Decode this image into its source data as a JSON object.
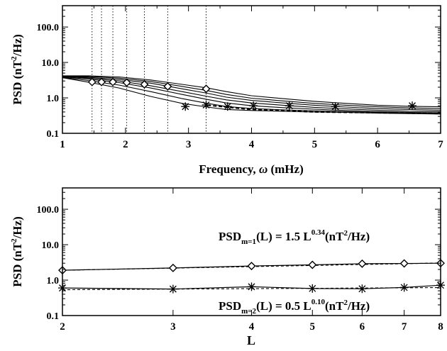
{
  "chart_data": [
    {
      "type": "line",
      "title": "",
      "xlabel_text": "Frequency,",
      "xlabel_symbol": "ω",
      "xlabel_unit": "(mHz)",
      "ylabel_main": "PSD (nT",
      "ylabel_sup": "2",
      "ylabel_tail": "/Hz)",
      "xscale": "linear",
      "yscale": "log",
      "xlim": [
        1,
        7
      ],
      "ylim": [
        0.1,
        400
      ],
      "grid": false,
      "xticks": [
        "1",
        "2",
        "3",
        "4",
        "5",
        "6",
        "7"
      ],
      "yticks": [
        "0.1",
        "1.0",
        "10.0",
        "100.0"
      ],
      "vertical_dotted_lines": [
        1.47,
        1.62,
        1.8,
        2.02,
        2.3,
        2.67,
        3.28
      ],
      "series": [
        {
          "x": [
            1,
            1.4,
            1.9,
            2.4,
            2.9,
            3.3,
            3.6,
            4,
            4.5,
            5,
            5.5,
            6,
            6.5,
            7
          ],
          "values": [
            4.2,
            4.2,
            3.9,
            3.2,
            2.4,
            1.9,
            1.5,
            1.15,
            0.95,
            0.8,
            0.7,
            0.62,
            0.58,
            0.56
          ]
        },
        {
          "x": [
            1,
            1.4,
            1.9,
            2.4,
            2.9,
            3.3,
            3.6,
            4,
            4.5,
            5,
            5.5,
            6,
            6.5,
            7
          ],
          "values": [
            4.1,
            4.0,
            3.6,
            2.9,
            2.1,
            1.6,
            1.25,
            0.98,
            0.82,
            0.7,
            0.62,
            0.56,
            0.52,
            0.5
          ]
        },
        {
          "x": [
            1,
            1.4,
            1.9,
            2.4,
            2.9,
            3.3,
            3.6,
            4,
            4.5,
            5,
            5.5,
            6,
            6.5,
            7
          ],
          "values": [
            4.0,
            3.8,
            3.3,
            2.6,
            1.8,
            1.35,
            1.05,
            0.85,
            0.72,
            0.62,
            0.55,
            0.5,
            0.47,
            0.45
          ]
        },
        {
          "x": [
            1,
            1.4,
            1.9,
            2.4,
            2.9,
            3.3,
            3.6,
            4,
            4.5,
            5,
            5.5,
            6,
            6.5,
            7
          ],
          "values": [
            4.0,
            3.6,
            3.0,
            2.2,
            1.5,
            1.1,
            0.88,
            0.72,
            0.62,
            0.54,
            0.49,
            0.45,
            0.42,
            0.41
          ]
        },
        {
          "x": [
            1,
            1.4,
            1.9,
            2.4,
            2.9,
            3.3,
            3.6,
            4,
            4.5,
            5,
            5.5,
            6,
            6.5,
            7
          ],
          "values": [
            3.9,
            3.4,
            2.7,
            1.9,
            1.25,
            0.9,
            0.72,
            0.6,
            0.53,
            0.48,
            0.44,
            0.41,
            0.39,
            0.38
          ]
        },
        {
          "x": [
            1,
            1.4,
            1.9,
            2.4,
            2.9,
            3.3,
            3.6,
            4,
            4.5,
            5,
            5.5,
            6,
            6.5,
            7
          ],
          "values": [
            3.8,
            3.1,
            2.3,
            1.5,
            0.95,
            0.7,
            0.57,
            0.5,
            0.46,
            0.43,
            0.41,
            0.39,
            0.37,
            0.36
          ]
        },
        {
          "x": [
            1,
            1.4,
            1.9,
            2.4,
            2.9,
            3.3,
            3.6,
            4,
            4.5,
            5,
            5.5,
            6,
            6.5,
            7
          ],
          "values": [
            3.7,
            2.8,
            1.9,
            1.1,
            0.7,
            0.55,
            0.47,
            0.44,
            0.42,
            0.4,
            0.39,
            0.37,
            0.36,
            0.35
          ]
        }
      ],
      "markers": {
        "diamond": {
          "x": [
            1.47,
            1.62,
            1.8,
            2.02,
            2.3,
            2.67,
            3.28
          ],
          "values": [
            2.8,
            2.8,
            2.8,
            2.7,
            2.4,
            2.1,
            1.8
          ]
        },
        "asterisk": {
          "x": [
            2.95,
            3.28,
            3.62,
            4.03,
            4.6,
            5.33,
            6.55
          ],
          "values": [
            0.57,
            0.63,
            0.57,
            0.6,
            0.6,
            0.57,
            0.6
          ]
        }
      },
      "dashed_series": {
        "x": [
          3.3,
          4,
          5,
          6,
          7
        ],
        "values": [
          0.62,
          0.47,
          0.4,
          0.38,
          0.36
        ]
      }
    },
    {
      "type": "line",
      "title": "",
      "xlabel": "L",
      "ylabel_main": "PSD (nT",
      "ylabel_sup": "2",
      "ylabel_tail": "/Hz)",
      "xscale": "log",
      "yscale": "log",
      "xlim": [
        2,
        8
      ],
      "ylim": [
        0.1,
        400
      ],
      "grid": false,
      "xticks": [
        "2",
        "3",
        "4",
        "5",
        "6",
        "7",
        "8"
      ],
      "yticks": [
        "0.1",
        "1.0",
        "10.0",
        "100.0"
      ],
      "series": [
        {
          "name": "m=1",
          "x": [
            2,
            3,
            4,
            5,
            6,
            7,
            8
          ],
          "values": [
            1.9,
            2.2,
            2.5,
            2.7,
            2.9,
            2.95,
            3.0
          ],
          "marker": "diamond"
        },
        {
          "name": "m=2",
          "x": [
            2,
            3,
            4,
            5,
            6,
            7,
            8
          ],
          "values": [
            0.6,
            0.56,
            0.65,
            0.58,
            0.57,
            0.62,
            0.72
          ],
          "marker": "asterisk"
        }
      ],
      "fits": [
        {
          "a": 1.5,
          "b": 0.34
        },
        {
          "a": 0.5,
          "b": 0.1
        }
      ],
      "annotations": [
        {
          "pre": "PSD",
          "sub": "m=1",
          "mid": "(L) = 1.5 L",
          "sup": "0.34",
          "post": "(nT",
          "sup2": "2",
          "end": "/Hz)"
        },
        {
          "pre": "PSD",
          "sub": "m=2",
          "mid": "(L) = 0.5 L",
          "sup": "0.10",
          "post": "(nT",
          "sup2": "2",
          "end": "/Hz)"
        }
      ]
    }
  ]
}
